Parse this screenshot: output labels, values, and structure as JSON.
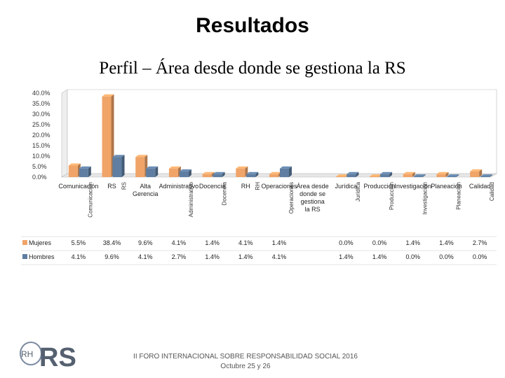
{
  "slide": {
    "title": "Resultados",
    "subtitle": "Perfil – Área desde donde se gestiona la RS"
  },
  "footer": {
    "line1": "II FORO INTERNACIONAL SOBRE RESPONSABILIDAD SOCIAL 2016",
    "line2": "Octubre 25 y 26"
  },
  "logo": {
    "text": "RS",
    "small": "RH"
  },
  "chart_data": {
    "type": "bar",
    "categories": [
      "Comunicación",
      "RS",
      "Alta Gerencia",
      "Administrativo",
      "Docencia",
      "RH",
      "Operaciones",
      "Área desde donde se gestiona la RS",
      "Jurídica",
      "Producción",
      "Investigación",
      "Planeación",
      "Calidad"
    ],
    "series": [
      {
        "name": "Mujeres",
        "values": [
          5.5,
          38.4,
          9.6,
          4.1,
          1.4,
          4.1,
          1.4,
          null,
          0.0,
          0.0,
          1.4,
          1.4,
          2.7
        ],
        "labels": [
          "5.5%",
          "38.4%",
          "9.6%",
          "4.1%",
          "1.4%",
          "4.1%",
          "1.4%",
          "",
          "0.0%",
          "0.0%",
          "1.4%",
          "1.4%",
          "2.7%"
        ],
        "color": "#f0a468"
      },
      {
        "name": "Hombres",
        "values": [
          4.1,
          9.6,
          4.1,
          2.7,
          1.4,
          1.4,
          4.1,
          null,
          1.4,
          1.4,
          0.0,
          0.0,
          0.0
        ],
        "labels": [
          "4.1%",
          "9.6%",
          "4.1%",
          "2.7%",
          "1.4%",
          "1.4%",
          "4.1%",
          "",
          "1.4%",
          "1.4%",
          "0.0%",
          "0.0%",
          "0.0%"
        ],
        "color": "#5f7ea1"
      }
    ],
    "yticks": [
      "0.0%",
      "5.0%",
      "10.0%",
      "15.0%",
      "20.0%",
      "25.0%",
      "30.0%",
      "35.0%",
      "40.0%"
    ],
    "ylim": [
      0,
      40
    ],
    "legend": "table-left",
    "grid": false
  }
}
